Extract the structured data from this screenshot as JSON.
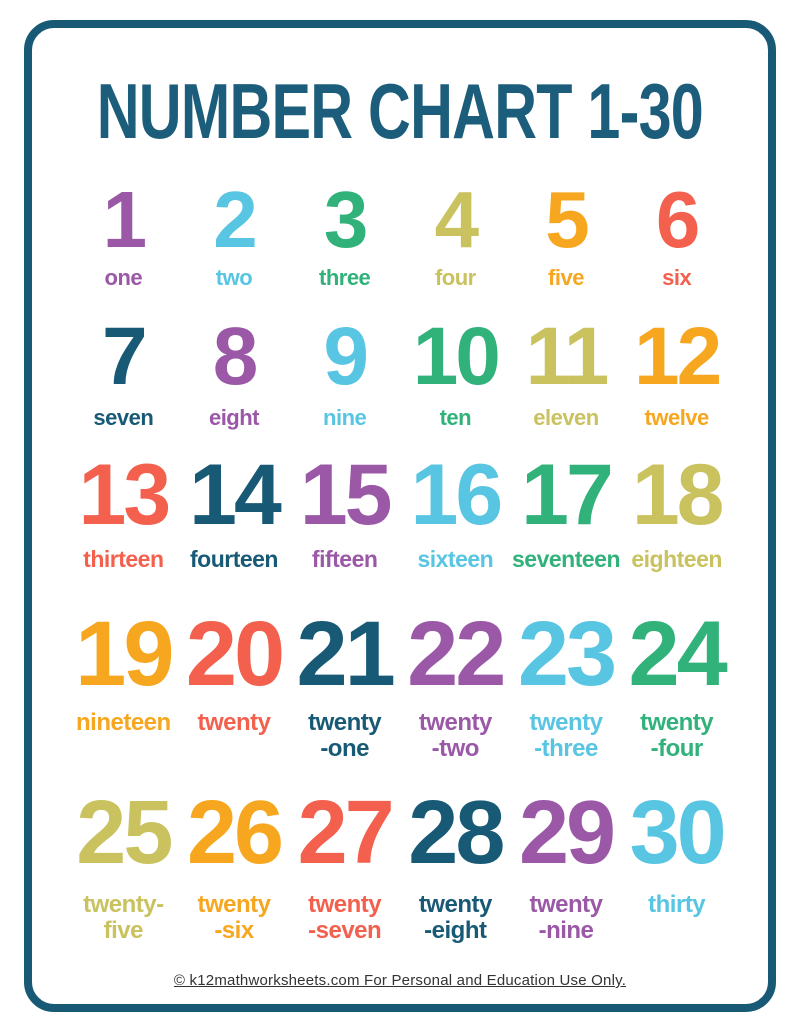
{
  "page": {
    "title": "NUMBER CHART 1-30",
    "footer_text": "© k12mathworksheets.com For Personal and Education Use Only."
  },
  "palette": {
    "purple": "#9a58a7",
    "cyan": "#58c5e2",
    "green": "#30b27a",
    "olive": "#c9c25f",
    "orange": "#f6a71f",
    "coral": "#f3604e",
    "teal": "#185a76",
    "border": "#185a76",
    "title": "#1b5d7a",
    "footer": "#333333"
  },
  "cells": [
    {
      "num": "1",
      "word1": "one",
      "word2": "",
      "color": "#9a58a7"
    },
    {
      "num": "2",
      "word1": "two",
      "word2": "",
      "color": "#58c5e2"
    },
    {
      "num": "3",
      "word1": "three",
      "word2": "",
      "color": "#30b27a"
    },
    {
      "num": "4",
      "word1": "four",
      "word2": "",
      "color": "#c9c25f"
    },
    {
      "num": "5",
      "word1": "five",
      "word2": "",
      "color": "#f6a71f"
    },
    {
      "num": "6",
      "word1": "six",
      "word2": "",
      "color": "#f3604e"
    },
    {
      "num": "7",
      "word1": "seven",
      "word2": "",
      "color": "#185a76"
    },
    {
      "num": "8",
      "word1": "eight",
      "word2": "",
      "color": "#9a58a7"
    },
    {
      "num": "9",
      "word1": "nine",
      "word2": "",
      "color": "#58c5e2"
    },
    {
      "num": "10",
      "word1": "ten",
      "word2": "",
      "color": "#30b27a"
    },
    {
      "num": "11",
      "word1": "eleven",
      "word2": "",
      "color": "#c9c25f"
    },
    {
      "num": "12",
      "word1": "twelve",
      "word2": "",
      "color": "#f6a71f"
    },
    {
      "num": "13",
      "word1": "thirteen",
      "word2": "",
      "color": "#f3604e"
    },
    {
      "num": "14",
      "word1": "fourteen",
      "word2": "",
      "color": "#185a76"
    },
    {
      "num": "15",
      "word1": "fifteen",
      "word2": "",
      "color": "#9a58a7"
    },
    {
      "num": "16",
      "word1": "sixteen",
      "word2": "",
      "color": "#58c5e2"
    },
    {
      "num": "17",
      "word1": "seventeen",
      "word2": "",
      "color": "#30b27a"
    },
    {
      "num": "18",
      "word1": "eighteen",
      "word2": "",
      "color": "#c9c25f"
    },
    {
      "num": "19",
      "word1": "nineteen",
      "word2": "",
      "color": "#f6a71f"
    },
    {
      "num": "20",
      "word1": "twenty",
      "word2": "",
      "color": "#f3604e"
    },
    {
      "num": "21",
      "word1": "twenty",
      "word2": "-one",
      "color": "#185a76"
    },
    {
      "num": "22",
      "word1": "twenty",
      "word2": "-two",
      "color": "#9a58a7"
    },
    {
      "num": "23",
      "word1": "twenty",
      "word2": "-three",
      "color": "#58c5e2"
    },
    {
      "num": "24",
      "word1": "twenty",
      "word2": "-four",
      "color": "#30b27a"
    },
    {
      "num": "25",
      "word1": "twenty-",
      "word2": "five",
      "color": "#c9c25f"
    },
    {
      "num": "26",
      "word1": "twenty",
      "word2": "-six",
      "color": "#f6a71f"
    },
    {
      "num": "27",
      "word1": "twenty",
      "word2": "-seven",
      "color": "#f3604e"
    },
    {
      "num": "28",
      "word1": "twenty",
      "word2": "-eight",
      "color": "#185a76"
    },
    {
      "num": "29",
      "word1": "twenty",
      "word2": "-nine",
      "color": "#9a58a7"
    },
    {
      "num": "30",
      "word1": "thirty",
      "word2": "",
      "color": "#58c5e2"
    }
  ]
}
